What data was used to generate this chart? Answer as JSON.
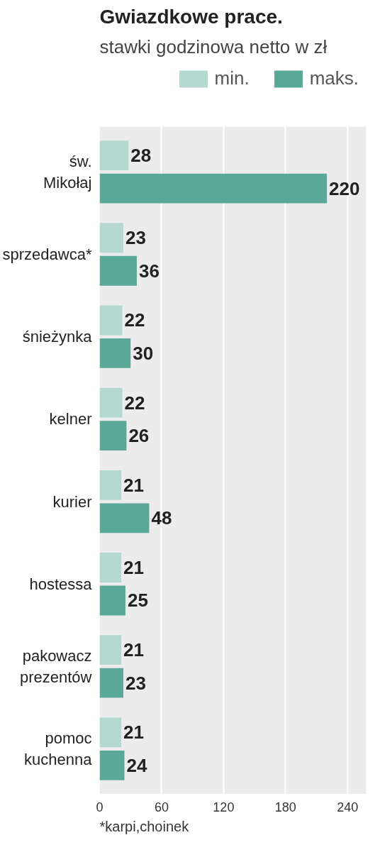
{
  "chart_data": {
    "type": "bar",
    "orientation": "horizontal",
    "title": "Gwiazdkowe prace.",
    "subtitle": "stawki godzinowa netto w zł",
    "categories": [
      "św.\nMikołaj",
      "sprzedawca*",
      "śnieżynka",
      "kelner",
      "kurier",
      "hostessa",
      "pakowacz\nprezentów",
      "pomoc\nkuchenna"
    ],
    "series": [
      {
        "name": "min.",
        "color": "#b5d9d1",
        "values": [
          28,
          23,
          22,
          22,
          21,
          21,
          21,
          21
        ]
      },
      {
        "name": "maks.",
        "color": "#5aa898",
        "values": [
          220,
          36,
          30,
          26,
          48,
          25,
          23,
          24
        ]
      }
    ],
    "xlim": [
      0,
      258
    ],
    "xticks": [
      0,
      60,
      120,
      180,
      240
    ],
    "grid": "x",
    "legend": "top right",
    "data_labels": true,
    "annotations": [
      "*karpi,choinek"
    ]
  }
}
